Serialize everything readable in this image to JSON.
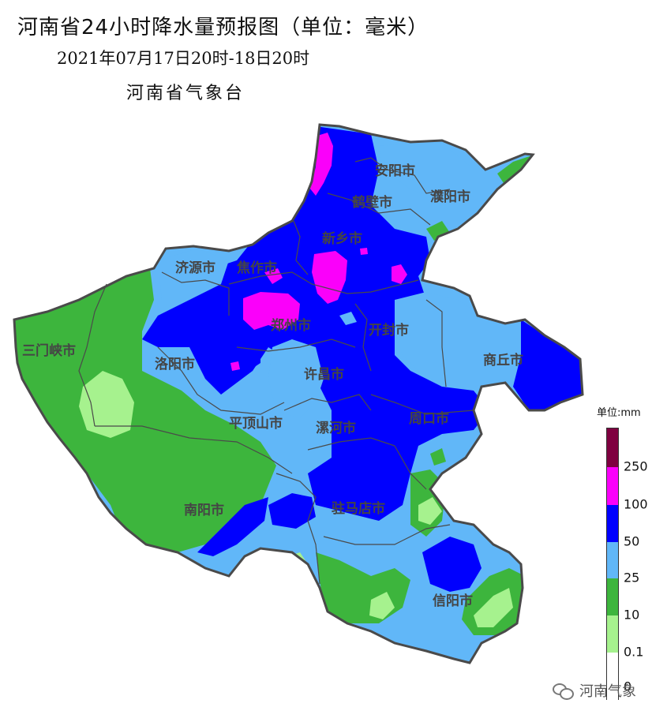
{
  "header": {
    "title": "河南省24小时降水量预报图（单位：毫米）",
    "period": "2021年07月17日20时-18日20时",
    "issuer": "河南省气象台"
  },
  "legend": {
    "unit": "单位:mm",
    "levels": [
      {
        "label": "0",
        "color": "#ffffff"
      },
      {
        "label": "0.1",
        "color": "#a6f28e"
      },
      {
        "label": "10",
        "color": "#3db53d"
      },
      {
        "label": "25",
        "color": "#61b7f8"
      },
      {
        "label": "50",
        "color": "#0000fe"
      },
      {
        "label": "100",
        "color": "#fa00fa"
      },
      {
        "label": "250",
        "color": "#7f0040"
      }
    ]
  },
  "cities": [
    {
      "name": "安阳市"
    },
    {
      "name": "濮阳市"
    },
    {
      "name": "鹤壁市"
    },
    {
      "name": "新乡市"
    },
    {
      "name": "济源市"
    },
    {
      "name": "焦作市"
    },
    {
      "name": "郑州市"
    },
    {
      "name": "开封市"
    },
    {
      "name": "三门峡市"
    },
    {
      "name": "洛阳市"
    },
    {
      "name": "商丘市"
    },
    {
      "name": "许昌市"
    },
    {
      "name": "平顶山市"
    },
    {
      "name": "漯河市"
    },
    {
      "name": "周口市"
    },
    {
      "name": "南阳市"
    },
    {
      "name": "驻马店市"
    },
    {
      "name": "信阳市"
    }
  ],
  "watermark": {
    "text": "河南气象",
    "icon": "wechat-icon"
  }
}
